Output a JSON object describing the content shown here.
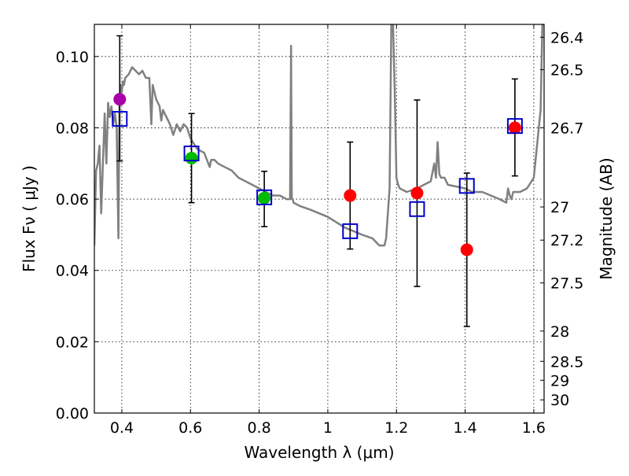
{
  "chart_data": {
    "type": "scatter",
    "title": "",
    "xlabel": "Wavelength  λ (μm)",
    "ylabel": "Flux  Fν  ( μJy )",
    "ylabel_right": "Magnitude (AB)",
    "xlim": [
      0.32,
      1.63
    ],
    "ylim": [
      0.0,
      0.109
    ],
    "grid": true,
    "x_ticks": [
      {
        "value": 0.4,
        "label": "0.4"
      },
      {
        "value": 0.6,
        "label": "0.6"
      },
      {
        "value": 0.8,
        "label": "0.8"
      },
      {
        "value": 1.0,
        "label": "1"
      },
      {
        "value": 1.2,
        "label": "1.2"
      },
      {
        "value": 1.4,
        "label": "1.4"
      },
      {
        "value": 1.6,
        "label": "1.6"
      }
    ],
    "y_ticks": [
      {
        "value": 0.0,
        "label": "0.00"
      },
      {
        "value": 0.02,
        "label": "0.02"
      },
      {
        "value": 0.04,
        "label": "0.04"
      },
      {
        "value": 0.06,
        "label": "0.06"
      },
      {
        "value": 0.08,
        "label": "0.08"
      },
      {
        "value": 0.1,
        "label": "0.10"
      }
    ],
    "mag_ticks": [
      {
        "flux": 0.1054,
        "label": "26.4"
      },
      {
        "flux": 0.0963,
        "label": "26.5"
      },
      {
        "flux": 0.08,
        "label": "26.7"
      },
      {
        "flux": 0.0578,
        "label": "27"
      },
      {
        "flux": 0.0485,
        "label": "27.2"
      },
      {
        "flux": 0.0365,
        "label": "27.5"
      },
      {
        "flux": 0.023,
        "label": "28"
      },
      {
        "flux": 0.0145,
        "label": "28.5"
      },
      {
        "flux": 0.0092,
        "label": "29"
      },
      {
        "flux": 0.0037,
        "label": "30"
      }
    ],
    "observed": [
      {
        "x": 0.394,
        "y": 0.088,
        "yerr_low": 0.0707,
        "yerr_high": 0.1058,
        "color": "#aa00aa"
      },
      {
        "x": 0.603,
        "y": 0.0715,
        "yerr_low": 0.059,
        "yerr_high": 0.084,
        "color": "#00bb00"
      },
      {
        "x": 0.815,
        "y": 0.0603,
        "yerr_low": 0.0523,
        "yerr_high": 0.0678,
        "color": "#00bb00"
      },
      {
        "x": 1.065,
        "y": 0.061,
        "yerr_low": 0.046,
        "yerr_high": 0.076,
        "color": "#ff0000"
      },
      {
        "x": 1.26,
        "y": 0.0617,
        "yerr_low": 0.0355,
        "yerr_high": 0.0878,
        "color": "#ff0000"
      },
      {
        "x": 1.405,
        "y": 0.0458,
        "yerr_low": 0.0243,
        "yerr_high": 0.0673,
        "color": "#ff0000"
      },
      {
        "x": 1.545,
        "y": 0.08,
        "yerr_low": 0.0665,
        "yerr_high": 0.0937,
        "color": "#ff0000"
      }
    ],
    "model": [
      {
        "x": 0.394,
        "y": 0.0825
      },
      {
        "x": 0.603,
        "y": 0.0728
      },
      {
        "x": 0.815,
        "y": 0.0605
      },
      {
        "x": 1.065,
        "y": 0.051
      },
      {
        "x": 1.26,
        "y": 0.0572
      },
      {
        "x": 1.405,
        "y": 0.0637
      },
      {
        "x": 1.545,
        "y": 0.0805
      }
    ],
    "spectrum": {
      "color": "#808080",
      "x": [
        0.32,
        0.325,
        0.33,
        0.335,
        0.34,
        0.345,
        0.35,
        0.355,
        0.36,
        0.365,
        0.37,
        0.375,
        0.38,
        0.385,
        0.39,
        0.393,
        0.396,
        0.4,
        0.403,
        0.406,
        0.41,
        0.42,
        0.43,
        0.44,
        0.45,
        0.46,
        0.47,
        0.48,
        0.486,
        0.49,
        0.5,
        0.51,
        0.515,
        0.52,
        0.53,
        0.54,
        0.55,
        0.56,
        0.57,
        0.58,
        0.59,
        0.6,
        0.62,
        0.64,
        0.656,
        0.66,
        0.67,
        0.68,
        0.7,
        0.72,
        0.74,
        0.76,
        0.78,
        0.8,
        0.82,
        0.84,
        0.86,
        0.88,
        0.89,
        0.893,
        0.895,
        0.898,
        0.9,
        0.92,
        0.95,
        1.0,
        1.05,
        1.1,
        1.13,
        1.15,
        1.165,
        1.17,
        1.18,
        1.185,
        1.19,
        1.195,
        1.2,
        1.205,
        1.21,
        1.23,
        1.26,
        1.28,
        1.3,
        1.31,
        1.315,
        1.32,
        1.325,
        1.33,
        1.34,
        1.35,
        1.4,
        1.42,
        1.45,
        1.5,
        1.52,
        1.525,
        1.53,
        1.535,
        1.54,
        1.56,
        1.58,
        1.6,
        1.62,
        1.625,
        1.63
      ],
      "y": [
        0.047,
        0.068,
        0.07,
        0.075,
        0.056,
        0.07,
        0.084,
        0.07,
        0.087,
        0.083,
        0.086,
        0.081,
        0.084,
        0.08,
        0.049,
        0.086,
        0.092,
        0.09,
        0.093,
        0.092,
        0.094,
        0.095,
        0.097,
        0.096,
        0.095,
        0.096,
        0.094,
        0.094,
        0.081,
        0.092,
        0.088,
        0.086,
        0.082,
        0.085,
        0.083,
        0.081,
        0.078,
        0.081,
        0.079,
        0.081,
        0.08,
        0.077,
        0.074,
        0.073,
        0.069,
        0.071,
        0.071,
        0.07,
        0.069,
        0.068,
        0.066,
        0.065,
        0.064,
        0.063,
        0.062,
        0.061,
        0.061,
        0.06,
        0.06,
        0.103,
        0.06,
        0.06,
        0.059,
        0.058,
        0.057,
        0.055,
        0.052,
        0.05,
        0.049,
        0.047,
        0.047,
        0.049,
        0.063,
        0.109,
        0.109,
        0.09,
        0.066,
        0.064,
        0.063,
        0.062,
        0.063,
        0.064,
        0.065,
        0.07,
        0.066,
        0.076,
        0.067,
        0.066,
        0.066,
        0.064,
        0.063,
        0.062,
        0.062,
        0.06,
        0.059,
        0.063,
        0.061,
        0.06,
        0.062,
        0.062,
        0.063,
        0.066,
        0.085,
        0.109,
        0.109
      ]
    }
  }
}
